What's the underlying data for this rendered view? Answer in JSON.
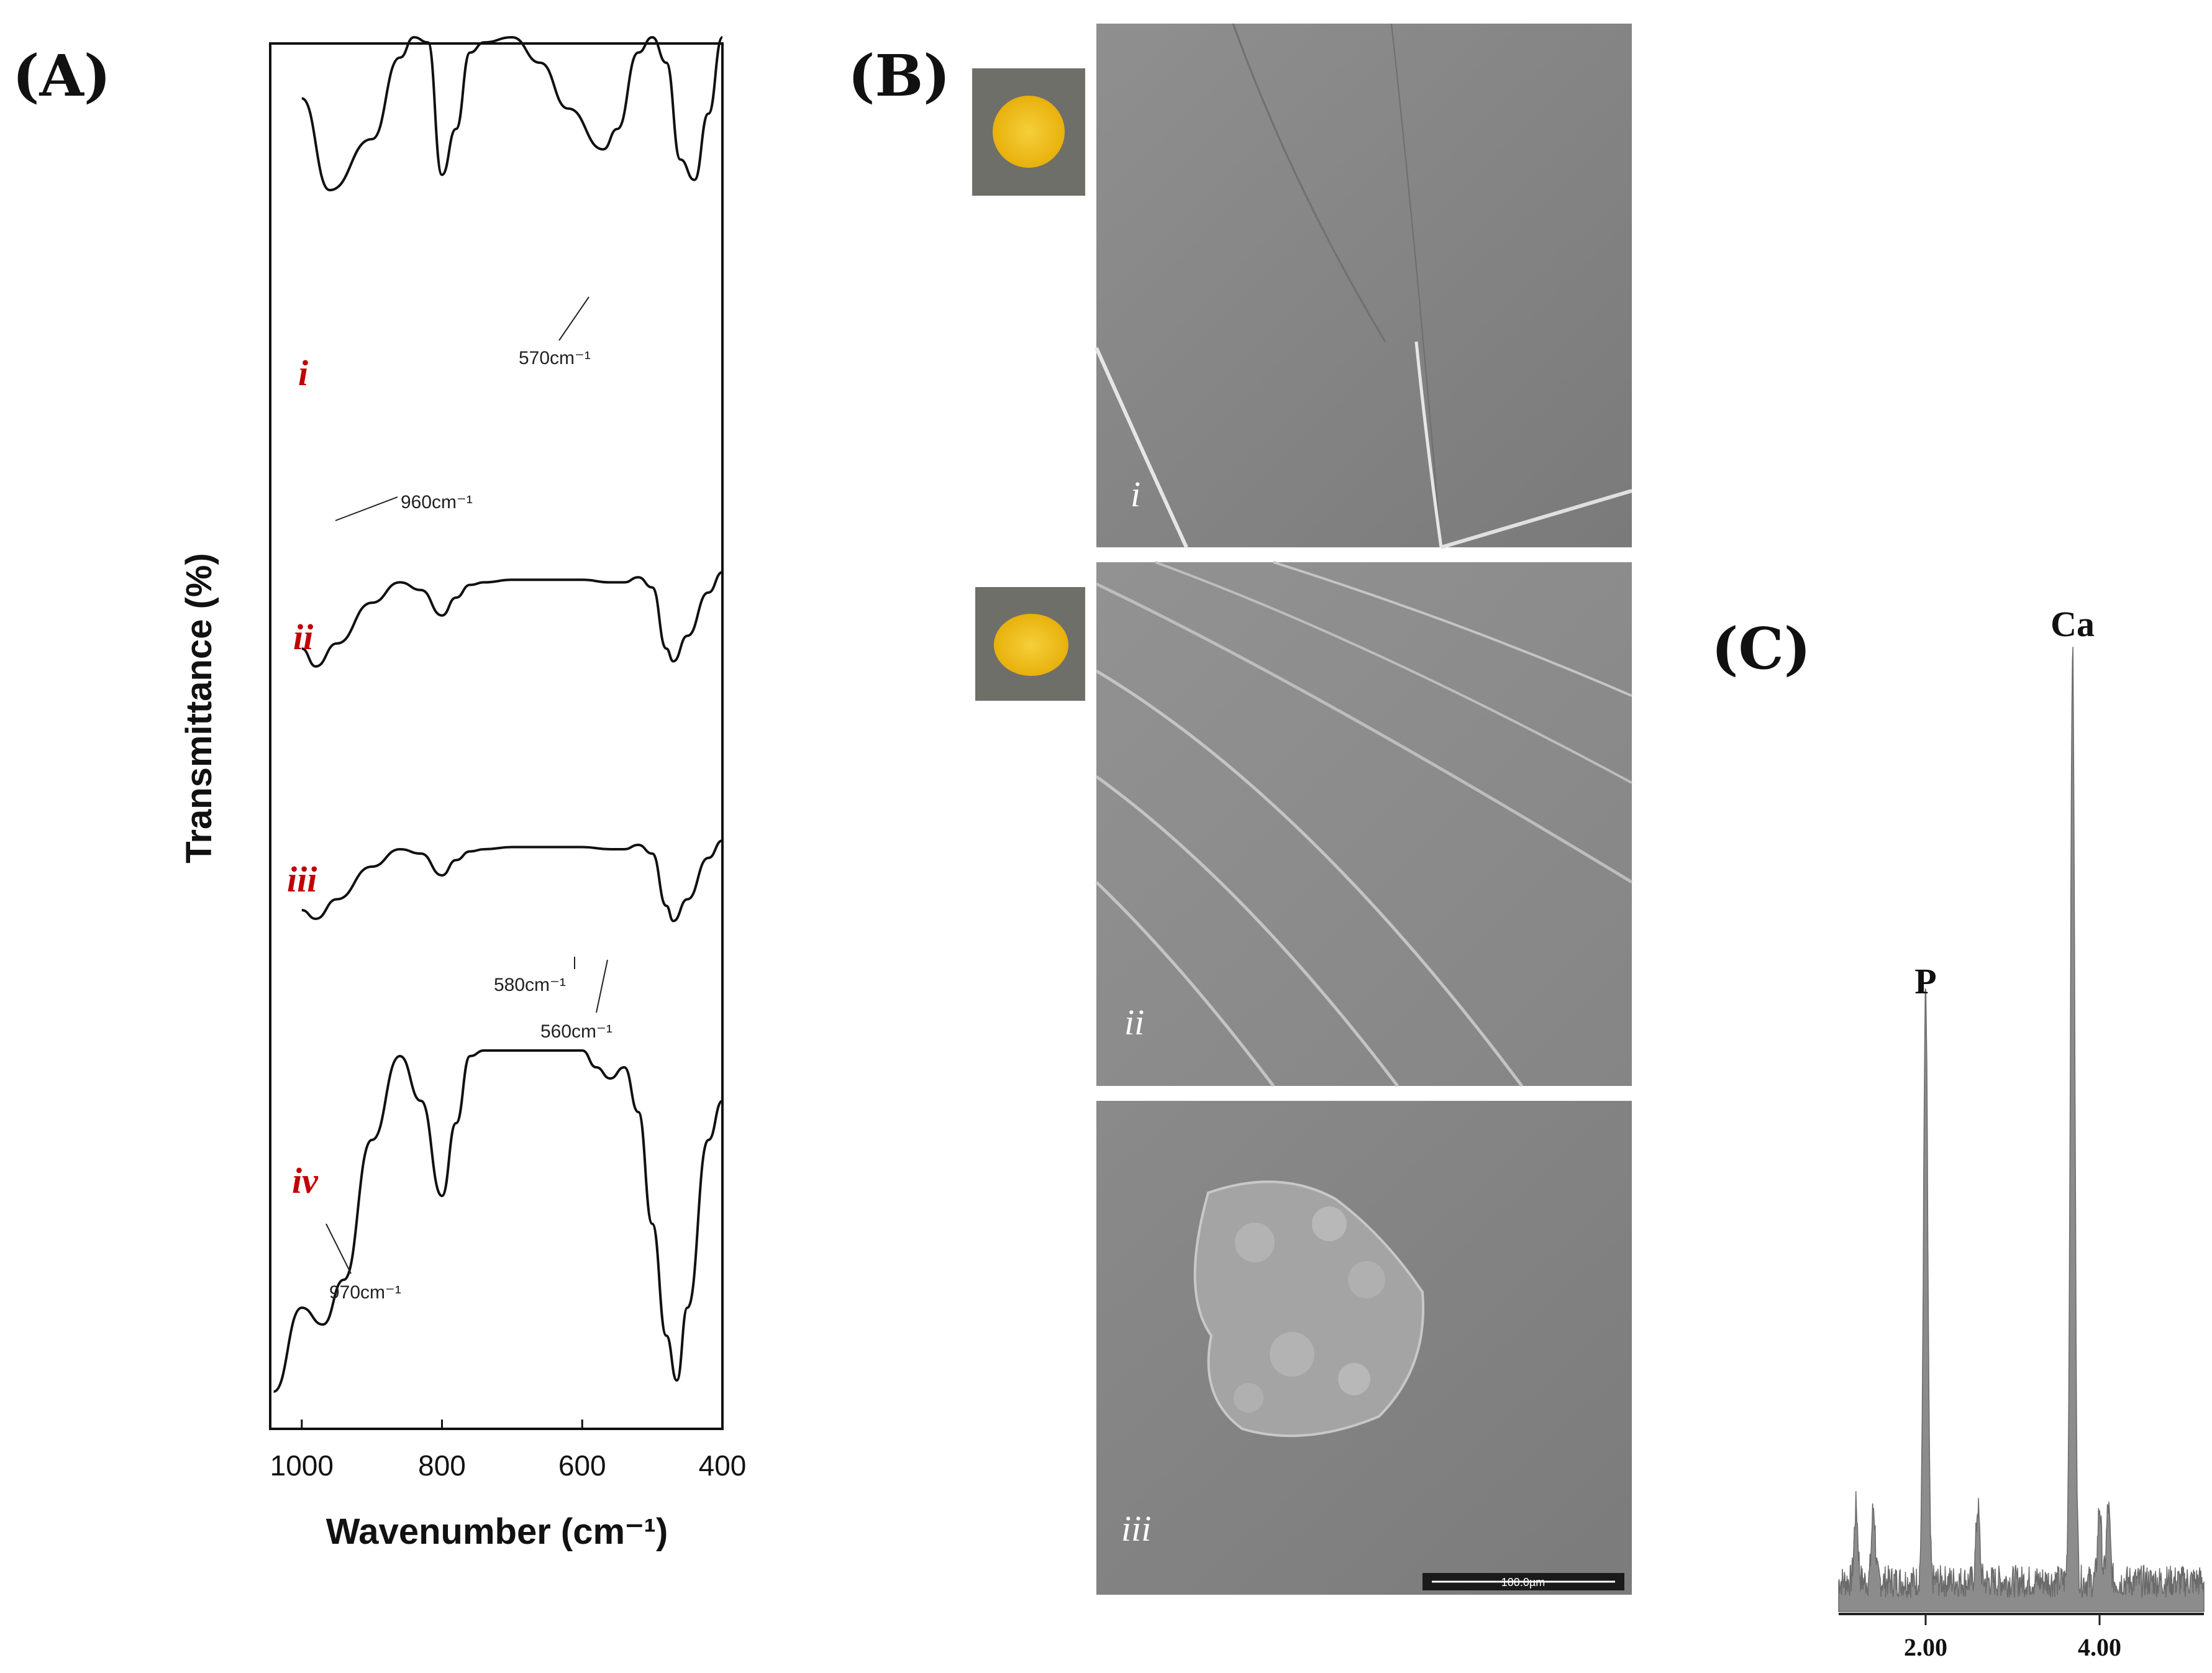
{
  "panels": {
    "a": {
      "letter": "(A)"
    },
    "b": {
      "letter": "(B)"
    },
    "c": {
      "letter": "(C)"
    }
  },
  "chart_data": [
    {
      "type": "line",
      "panel": "A",
      "xlabel": "Wavenumber (cm⁻¹)",
      "ylabel": "Transmittance (%)",
      "xlim": [
        1045,
        400
      ],
      "x_ticks": [
        "1000",
        "800",
        "600",
        "400"
      ],
      "y_scale": "arbitrary, stacked traces",
      "series": [
        {
          "name": "i",
          "x": [
            1000,
            960,
            900,
            860,
            840,
            820,
            800,
            780,
            760,
            740,
            700,
            660,
            620,
            570,
            550,
            520,
            500,
            480,
            460,
            440,
            420,
            400
          ],
          "y": [
            88,
            70,
            80,
            96,
            100,
            99,
            73,
            82,
            97,
            99,
            100,
            95,
            86,
            78,
            82,
            97,
            100,
            95,
            76,
            72,
            85,
            100
          ]
        },
        {
          "name": "ii",
          "x": [
            1000,
            980,
            950,
            900,
            860,
            830,
            800,
            780,
            760,
            740,
            700,
            650,
            600,
            560,
            540,
            520,
            500,
            480,
            470,
            450,
            420,
            400
          ],
          "y": [
            60,
            53,
            62,
            78,
            86,
            83,
            73,
            80,
            85,
            86,
            87,
            87,
            87,
            86,
            86,
            88,
            84,
            60,
            55,
            65,
            82,
            90
          ]
        },
        {
          "name": "iii",
          "x": [
            1000,
            980,
            950,
            900,
            860,
            830,
            800,
            780,
            760,
            740,
            700,
            650,
            600,
            560,
            540,
            520,
            500,
            480,
            470,
            450,
            420,
            400
          ],
          "y": [
            50,
            46,
            55,
            70,
            78,
            76,
            66,
            73,
            77,
            78,
            79,
            79,
            79,
            78,
            78,
            80,
            76,
            52,
            45,
            55,
            74,
            82
          ]
        },
        {
          "name": "iv",
          "x": [
            1040,
            1000,
            970,
            940,
            900,
            860,
            830,
            800,
            780,
            760,
            740,
            700,
            650,
            600,
            580,
            560,
            540,
            520,
            500,
            480,
            465,
            450,
            420,
            400
          ],
          "y": [
            10,
            25,
            22,
            30,
            55,
            70,
            62,
            45,
            58,
            70,
            71,
            71,
            71,
            71,
            68,
            66,
            68,
            60,
            40,
            20,
            12,
            25,
            55,
            62
          ]
        }
      ],
      "annotations": [
        {
          "label": "570cm⁻¹",
          "series": "i"
        },
        {
          "label": "960cm⁻¹",
          "series": "i"
        },
        {
          "label": "580cm⁻¹",
          "series": "iv"
        },
        {
          "label": "560cm⁻¹",
          "series": "iv"
        },
        {
          "label": "970cm⁻¹",
          "series": "iv"
        }
      ]
    },
    {
      "type": "bar",
      "panel": "C",
      "xlim": [
        1.0,
        5.2
      ],
      "x_ticks": [
        "2.00",
        "4.00"
      ],
      "peaks": [
        {
          "label": "P",
          "x": 2.0,
          "relative_height": 0.63
        },
        {
          "label": "Ca",
          "x": 3.69,
          "relative_height": 1.0
        }
      ],
      "minor_peaks_x": [
        1.2,
        1.4,
        2.6,
        4.0,
        4.1
      ]
    }
  ],
  "sem": {
    "images": [
      {
        "label": "i"
      },
      {
        "label": "ii"
      },
      {
        "label": "iii",
        "scalebar": "100.0µm"
      }
    ],
    "photo_colors": {
      "pellet": "#f2c21b",
      "background": "#6f6f6a"
    }
  }
}
